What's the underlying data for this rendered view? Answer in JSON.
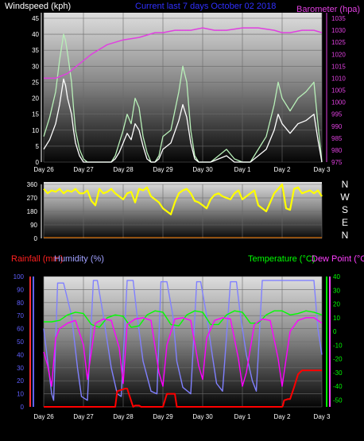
{
  "colors": {
    "wind_avg": "#ffffff",
    "wind_gust": "#b8f0b8",
    "barometer": "#e040e0",
    "direction": "#ffff00",
    "humidity": "#8080ff",
    "temperature": "#00ff00",
    "dewpoint": "#ff00ff",
    "rainfall": "#ff0000",
    "grid": "#6a6a6a"
  },
  "chart_data": [
    {
      "type": "line",
      "title": "Current last 7 days October 02 2018",
      "ylabel": "Windspeed (kph)",
      "y2label": "Barometer (hpa)",
      "ylim": [
        0,
        45
      ],
      "y2lim": [
        975,
        1035
      ],
      "yticks": [
        "0",
        "5",
        "10",
        "15",
        "20",
        "25",
        "30",
        "35",
        "40",
        "45"
      ],
      "y2ticks": [
        "975",
        "980",
        "985",
        "990",
        "995",
        "1000",
        "1005",
        "1010",
        "1015",
        "1020",
        "1025",
        "1030",
        "1035"
      ],
      "xlabels": [
        "Day 26",
        "Day 27",
        "Day 28",
        "Day 29",
        "Day 30",
        "Day 1",
        "Day 2",
        "Day 3"
      ],
      "xrange": [
        0,
        7
      ],
      "series": [
        {
          "key": "gust",
          "color_key": "wind_gust",
          "x": [
            0,
            0.15,
            0.3,
            0.4,
            0.5,
            0.55,
            0.6,
            0.7,
            0.75,
            0.8,
            0.9,
            1.0,
            1.1,
            1.3,
            1.5,
            1.7,
            1.8,
            1.9,
            2.0,
            2.1,
            2.2,
            2.3,
            2.4,
            2.5,
            2.6,
            2.7,
            2.8,
            2.9,
            3.0,
            3.2,
            3.4,
            3.5,
            3.6,
            3.7,
            3.8,
            3.9,
            4.0,
            4.2,
            4.4,
            4.6,
            4.8,
            5.0,
            5.2,
            5.4,
            5.6,
            5.8,
            5.9,
            6.0,
            6.2,
            6.4,
            6.6,
            6.8,
            6.9,
            7.0
          ],
          "y": [
            8,
            14,
            22,
            32,
            40,
            38,
            34,
            25,
            17,
            10,
            4,
            1,
            0,
            0,
            0,
            0,
            2,
            6,
            10,
            15,
            12,
            20,
            17,
            8,
            3,
            0,
            0,
            2,
            8,
            10,
            22,
            30,
            25,
            10,
            2,
            0,
            0,
            0,
            2,
            4,
            1,
            0,
            0,
            4,
            8,
            18,
            25,
            20,
            16,
            20,
            22,
            25,
            12,
            0
          ]
        },
        {
          "key": "average",
          "color_key": "wind_avg",
          "x": [
            0,
            0.15,
            0.3,
            0.4,
            0.5,
            0.55,
            0.6,
            0.7,
            0.75,
            0.8,
            0.9,
            1.0,
            1.1,
            1.3,
            1.5,
            1.7,
            1.8,
            1.9,
            2.0,
            2.1,
            2.2,
            2.3,
            2.4,
            2.5,
            2.6,
            2.7,
            2.8,
            2.9,
            3.0,
            3.2,
            3.4,
            3.5,
            3.6,
            3.7,
            3.8,
            3.9,
            4.0,
            4.2,
            4.4,
            4.6,
            4.8,
            5.0,
            5.2,
            5.4,
            5.6,
            5.8,
            5.9,
            6.0,
            6.2,
            6.4,
            6.6,
            6.8,
            6.9,
            7.0
          ],
          "y": [
            4,
            7,
            12,
            18,
            26,
            24,
            20,
            15,
            10,
            6,
            2,
            0,
            0,
            0,
            0,
            0,
            1,
            3,
            6,
            9,
            7,
            12,
            10,
            5,
            1,
            0,
            0,
            1,
            4,
            6,
            13,
            18,
            14,
            6,
            1,
            0,
            0,
            0,
            1,
            2,
            0,
            0,
            0,
            2,
            4,
            10,
            15,
            12,
            9,
            12,
            13,
            15,
            7,
            0
          ]
        },
        {
          "key": "barometer",
          "axis": "right",
          "color_key": "barometer",
          "x": [
            0,
            0.3,
            0.6,
            0.9,
            1.2,
            1.6,
            2.0,
            2.4,
            2.8,
            3.0,
            3.3,
            3.7,
            4.0,
            4.3,
            4.6,
            5.0,
            5.4,
            5.8,
            6.0,
            6.2,
            6.5,
            6.8,
            7.0
          ],
          "y": [
            1010,
            1010,
            1012,
            1016,
            1020,
            1024,
            1026,
            1027,
            1029,
            1029,
            1030,
            1030,
            1031,
            1030,
            1030,
            1031,
            1031,
            1030,
            1029,
            1029,
            1030,
            1030,
            1029
          ]
        }
      ]
    },
    {
      "type": "scatter",
      "yticks": [
        "0",
        "90",
        "180",
        "270",
        "360"
      ],
      "ylim": [
        0,
        360
      ],
      "compass": [
        "N",
        "W",
        "S",
        "E",
        "N"
      ],
      "xrange": [
        0,
        7
      ],
      "series": [
        {
          "key": "direction",
          "color_key": "direction",
          "x": [
            0,
            0.1,
            0.2,
            0.3,
            0.4,
            0.5,
            0.6,
            0.7,
            0.8,
            0.9,
            1.0,
            1.1,
            1.2,
            1.3,
            1.4,
            1.5,
            1.6,
            1.7,
            1.8,
            1.9,
            2.0,
            2.1,
            2.2,
            2.3,
            2.4,
            2.5,
            2.6,
            2.7,
            2.8,
            2.9,
            3.0,
            3.1,
            3.2,
            3.3,
            3.4,
            3.5,
            3.6,
            3.7,
            3.8,
            3.9,
            4.0,
            4.1,
            4.2,
            4.3,
            4.4,
            4.5,
            4.6,
            4.7,
            4.8,
            4.9,
            5.0,
            5.1,
            5.2,
            5.3,
            5.4,
            5.5,
            5.6,
            5.7,
            5.8,
            5.9,
            6.0,
            6.1,
            6.2,
            6.3,
            6.4,
            6.5,
            6.6,
            6.7,
            6.8,
            6.9,
            7.0
          ],
          "y": [
            330,
            300,
            320,
            310,
            330,
            300,
            320,
            310,
            330,
            300,
            300,
            320,
            250,
            220,
            330,
            300,
            310,
            330,
            300,
            280,
            260,
            300,
            310,
            240,
            330,
            320,
            340,
            280,
            260,
            240,
            200,
            180,
            160,
            240,
            300,
            320,
            330,
            300,
            250,
            240,
            220,
            200,
            260,
            290,
            300,
            280,
            270,
            260,
            300,
            320,
            260,
            280,
            300,
            320,
            220,
            200,
            180,
            240,
            300,
            330,
            360,
            200,
            190,
            330,
            340,
            300,
            310,
            320,
            300,
            320,
            280
          ]
        }
      ]
    },
    {
      "type": "line",
      "ylabel": "Rainfall (mm)",
      "y2label": "Humidity (%)",
      "y3label": "Temperature (°C)",
      "y4label": "Dew Point (°C)",
      "ylim": [
        0,
        100
      ],
      "y3lim": [
        -55,
        40
      ],
      "yticks": [
        "0",
        "10",
        "20",
        "30",
        "40",
        "50",
        "60",
        "70",
        "80",
        "90",
        "100"
      ],
      "y3ticks": [
        "-50",
        "-40",
        "-30",
        "-20",
        "-10",
        "0",
        "10",
        "20",
        "30",
        "40"
      ],
      "xlabels": [
        "Day 26",
        "Day 27",
        "Day 28",
        "Day 29",
        "Day 30",
        "Day 1",
        "Day 2",
        "Day 3"
      ],
      "xrange": [
        0,
        7
      ],
      "series": [
        {
          "key": "humidity",
          "color_key": "humidity",
          "x": [
            0,
            0.1,
            0.2,
            0.25,
            0.35,
            0.5,
            0.7,
            0.85,
            0.95,
            1.1,
            1.25,
            1.35,
            1.5,
            1.7,
            1.85,
            1.95,
            2.1,
            2.25,
            2.35,
            2.5,
            2.7,
            2.85,
            2.95,
            3.1,
            3.25,
            3.35,
            3.5,
            3.7,
            3.85,
            3.95,
            4.1,
            4.25,
            4.35,
            4.5,
            4.7,
            4.85,
            4.95,
            5.1,
            5.25,
            5.35,
            5.5,
            5.7,
            5.85,
            6.0,
            6.2,
            6.5,
            6.8,
            6.9,
            7.0
          ],
          "y": [
            60,
            35,
            10,
            5,
            95,
            95,
            70,
            30,
            8,
            5,
            97,
            97,
            70,
            30,
            10,
            8,
            97,
            97,
            70,
            35,
            12,
            10,
            96,
            96,
            70,
            35,
            15,
            10,
            96,
            96,
            70,
            38,
            18,
            12,
            96,
            96,
            70,
            40,
            20,
            12,
            97,
            97,
            97,
            97,
            97,
            97,
            97,
            60,
            40
          ]
        },
        {
          "key": "temperature",
          "axis": "right",
          "color_key": "temperature",
          "x": [
            0,
            0.2,
            0.4,
            0.6,
            0.8,
            1.0,
            1.2,
            1.4,
            1.6,
            1.8,
            2.0,
            2.2,
            2.4,
            2.6,
            2.8,
            3.0,
            3.2,
            3.4,
            3.6,
            3.8,
            4.0,
            4.2,
            4.4,
            4.6,
            4.8,
            5.0,
            5.2,
            5.4,
            5.6,
            5.8,
            6.0,
            6.2,
            6.4,
            6.6,
            6.8,
            7.0
          ],
          "y": [
            7,
            7,
            8,
            12,
            14,
            13,
            5,
            3,
            10,
            12,
            11,
            3,
            4,
            12,
            15,
            14,
            5,
            4,
            12,
            15,
            14,
            5,
            5,
            12,
            15,
            14,
            6,
            6,
            12,
            15,
            15,
            12,
            13,
            15,
            14,
            12
          ]
        },
        {
          "key": "dewpoint",
          "axis": "right",
          "color_key": "dewpoint",
          "x": [
            0,
            0.1,
            0.2,
            0.3,
            0.4,
            0.6,
            0.8,
            1.0,
            1.1,
            1.3,
            1.5,
            1.7,
            1.9,
            2.0,
            2.1,
            2.3,
            2.5,
            2.7,
            2.9,
            3.0,
            3.1,
            3.3,
            3.5,
            3.7,
            3.9,
            4.0,
            4.1,
            4.3,
            4.5,
            4.7,
            4.9,
            5.0,
            5.1,
            5.3,
            5.5,
            5.7,
            5.9,
            6.0,
            6.2,
            6.4,
            6.6,
            6.8,
            7.0
          ],
          "y": [
            -15,
            -25,
            -40,
            -5,
            2,
            6,
            8,
            -10,
            -35,
            6,
            9,
            8,
            -12,
            -38,
            5,
            9,
            10,
            8,
            -30,
            -40,
            -10,
            9,
            10,
            8,
            -25,
            -35,
            -5,
            8,
            10,
            9,
            -20,
            -40,
            -30,
            5,
            9,
            8,
            -20,
            -40,
            0,
            8,
            10,
            10,
            6
          ]
        },
        {
          "key": "rainfall",
          "color_key": "rainfall",
          "x": [
            0,
            1.8,
            1.85,
            2.05,
            2.1,
            2.25,
            2.3,
            2.4,
            2.45,
            3.0,
            3.1,
            3.2,
            3.3,
            3.35,
            3.4,
            4.0,
            4.5,
            6.0,
            6.02,
            6.05,
            6.15,
            6.2,
            6.3,
            6.4,
            6.5,
            6.6,
            7.0
          ],
          "y": [
            0,
            0,
            12,
            14,
            14,
            0,
            1,
            1,
            0,
            0,
            10,
            10,
            10,
            0,
            0,
            0,
            0,
            0,
            1,
            5,
            6,
            6,
            15,
            25,
            28,
            28,
            28
          ]
        }
      ]
    }
  ],
  "labels": {
    "title": "Current last 7 days October 02 2018",
    "windspeed": "Windspeed (kph)",
    "barometer": "Barometer (hpa)",
    "rainfall": "Rainfall (mm)",
    "humidity": "Humidity (%)",
    "temperature": "Temperature (°C)",
    "dewpoint": "Dew Point (°C)"
  }
}
